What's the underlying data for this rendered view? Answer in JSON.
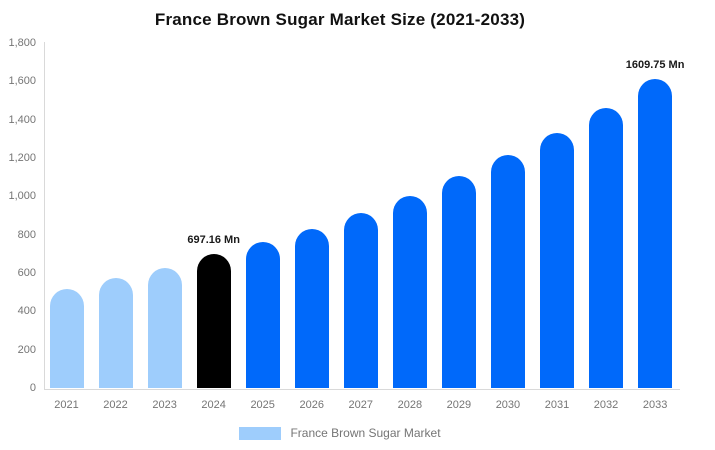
{
  "chart_data": {
    "type": "bar",
    "title": "France Brown Sugar Market Size (2021-2033)",
    "xlabel": "",
    "ylabel": "",
    "unit": "Mn",
    "categories": [
      "2021",
      "2022",
      "2023",
      "2024",
      "2025",
      "2026",
      "2027",
      "2028",
      "2029",
      "2030",
      "2031",
      "2032",
      "2033"
    ],
    "values": [
      515,
      572,
      628,
      697.16,
      760,
      828,
      913,
      1004,
      1105,
      1216,
      1330,
      1462,
      1609.75
    ],
    "bar_colors": [
      "#9ecdfc",
      "#9ecdfc",
      "#9ecdfc",
      "#000000",
      "#0069fa",
      "#0069fa",
      "#0069fa",
      "#0069fa",
      "#0069fa",
      "#0069fa",
      "#0069fa",
      "#0069fa",
      "#0069fa"
    ],
    "data_labels": [
      {
        "index": 3,
        "text": "697.16 Mn"
      },
      {
        "index": 12,
        "text": "1609.75 Mn"
      }
    ],
    "ylim": [
      0,
      1800
    ],
    "y_ticks": [
      0,
      200,
      400,
      600,
      800,
      1000,
      1200,
      1400,
      1600,
      1800
    ],
    "y_tick_labels": [
      "0",
      "200",
      "400",
      "600",
      "800",
      "1,000",
      "1,200",
      "1,400",
      "1,600",
      "1,800"
    ],
    "grid": false,
    "legend": {
      "position": "bottom",
      "items": [
        {
          "label": "France Brown Sugar Market",
          "color": "#9ecdfc"
        }
      ]
    },
    "colors": {
      "historical_bar": "#9ecdfc",
      "highlight_bar": "#000000",
      "forecast_bar": "#0069fa",
      "axis_line": "#d9d9d9",
      "tick_text": "#757575",
      "title_text": "#111111",
      "data_label_text": "#1a1a1a"
    }
  }
}
